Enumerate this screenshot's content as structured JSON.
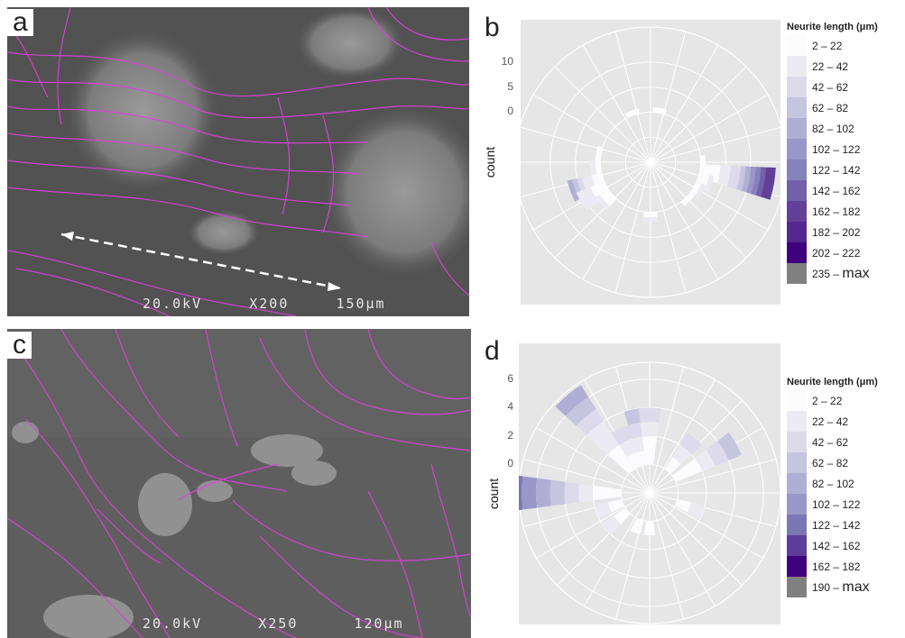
{
  "panels": {
    "a": {
      "letter": "a",
      "sem": {
        "voltage": "20.0kV",
        "magnification": "X200",
        "scale": "150μm"
      }
    },
    "b": {
      "letter": "b"
    },
    "c": {
      "letter": "c",
      "sem": {
        "voltage": "20.0kV",
        "magnification": "X250",
        "scale": "120μm"
      }
    },
    "d": {
      "letter": "d"
    }
  },
  "chart_data": [
    {
      "panel": "b",
      "type": "polar-stacked-bar",
      "ylabel": "count",
      "yticks": [
        0,
        5,
        10
      ],
      "ylim": [
        -10,
        17
      ],
      "legend": {
        "title": "Neurite length (μm)",
        "placement": "right",
        "items": [
          {
            "label": "2 – 22",
            "color": "#fcfbfd"
          },
          {
            "label": "22 – 42",
            "color": "#ecebf4"
          },
          {
            "label": "42 – 62",
            "color": "#dcdaeb"
          },
          {
            "label": "62 – 82",
            "color": "#c6c5e0"
          },
          {
            "label": "82 – 102",
            "color": "#b0aed4"
          },
          {
            "label": "102 – 122",
            "color": "#9a96c7"
          },
          {
            "label": "122 – 142",
            "color": "#8581ba"
          },
          {
            "label": "142 – 162",
            "color": "#7160aa"
          },
          {
            "label": "162 – 182",
            "color": "#62409a"
          },
          {
            "label": "182 – 202",
            "color": "#54278f"
          },
          {
            "label": "202 – 222",
            "color": "#3f007d"
          },
          {
            "label": "235 – max",
            "color": "#808080"
          }
        ]
      },
      "sectors": [
        {
          "angle": 100,
          "stack": [
            4,
            2,
            2,
            1,
            1,
            1,
            1,
            1,
            2
          ]
        },
        {
          "angle": 110,
          "stack": [
            2,
            1
          ]
        },
        {
          "angle": 120,
          "stack": [
            1,
            1
          ]
        },
        {
          "angle": 90,
          "stack": [
            1
          ]
        },
        {
          "angle": 135,
          "stack": [
            1
          ]
        },
        {
          "angle": 250,
          "stack": [
            2,
            2,
            1,
            1,
            1
          ]
        },
        {
          "angle": 240,
          "stack": [
            3,
            3
          ]
        },
        {
          "angle": 230,
          "stack": [
            2,
            1
          ]
        },
        {
          "angle": 265,
          "stack": [
            1,
            1
          ]
        },
        {
          "angle": 180,
          "stack": [
            1,
            1
          ]
        },
        {
          "angle": 10,
          "stack": [
            1
          ]
        },
        {
          "angle": 340,
          "stack": [
            1
          ]
        },
        {
          "angle": 280,
          "stack": [
            1
          ]
        }
      ]
    },
    {
      "panel": "d",
      "type": "polar-stacked-bar",
      "ylabel": "count",
      "yticks": [
        0,
        2,
        4,
        6
      ],
      "ylim": [
        -2,
        7.2
      ],
      "legend": {
        "title": "Neurite length (μm)",
        "placement": "right",
        "items": [
          {
            "label": "2 – 22",
            "color": "#fcfbfd"
          },
          {
            "label": "22 – 42",
            "color": "#ecebf4"
          },
          {
            "label": "42 – 62",
            "color": "#dcdaeb"
          },
          {
            "label": "62 – 82",
            "color": "#c6c5e0"
          },
          {
            "label": "82 – 102",
            "color": "#b0aed4"
          },
          {
            "label": "102 – 122",
            "color": "#9a96c7"
          },
          {
            "label": "122 – 142",
            "color": "#7c76b6"
          },
          {
            "label": "142 – 162",
            "color": "#5e3c99"
          },
          {
            "label": "162 – 182",
            "color": "#3f007d"
          },
          {
            "label": "190 – max",
            "color": "#808080"
          }
        ]
      },
      "sectors": [
        {
          "angle": 320,
          "stack": [
            2,
            2,
            1,
            1,
            1
          ]
        },
        {
          "angle": 335,
          "stack": [
            1,
            1,
            1
          ]
        },
        {
          "angle": 350,
          "stack": [
            1,
            1,
            1,
            1
          ]
        },
        {
          "angle": 0,
          "stack": [
            2,
            1,
            1
          ]
        },
        {
          "angle": 270,
          "stack": [
            2,
            1,
            1,
            1,
            1,
            1,
            1,
            1,
            2
          ]
        },
        {
          "angle": 40,
          "stack": [
            1,
            1,
            1
          ]
        },
        {
          "angle": 60,
          "stack": [
            2,
            1,
            1,
            1
          ]
        },
        {
          "angle": 110,
          "stack": [
            1,
            1
          ]
        },
        {
          "angle": 200,
          "stack": [
            1
          ]
        },
        {
          "angle": 230,
          "stack": [
            1,
            1
          ]
        },
        {
          "angle": 250,
          "stack": [
            1,
            1
          ]
        },
        {
          "angle": 180,
          "stack": [
            1
          ]
        }
      ]
    }
  ]
}
